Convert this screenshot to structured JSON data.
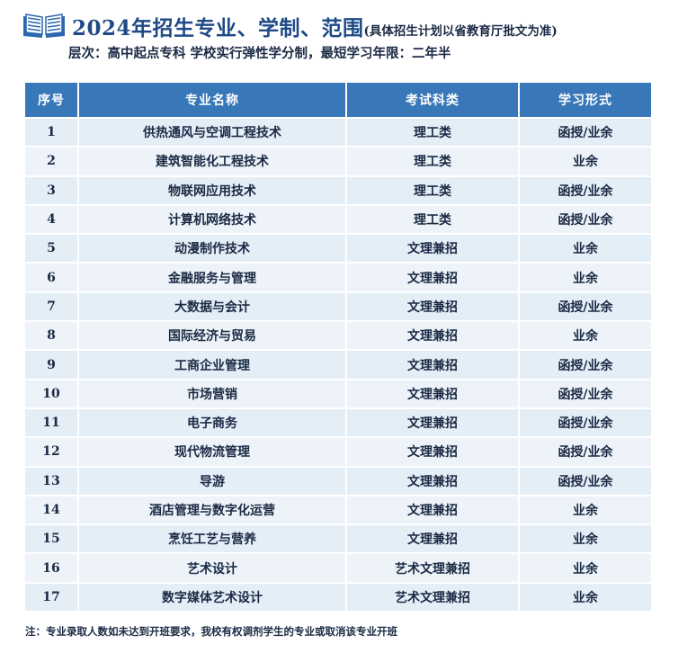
{
  "header": {
    "icon": "open-book-icon",
    "title": "2024年招生专业、学制、范围",
    "title_note": "(具体招生计划以省教育厅批文为准)",
    "subtitle": "层次：高中起点专科 学校实行弹性学分制，最短学习年限：二年半"
  },
  "table": {
    "columns": [
      "序号",
      "专业名称",
      "考试科类",
      "学习形式"
    ],
    "rows": [
      [
        "1",
        "供热通风与空调工程技术",
        "理工类",
        "函授/业余"
      ],
      [
        "2",
        "建筑智能化工程技术",
        "理工类",
        "业余"
      ],
      [
        "3",
        "物联网应用技术",
        "理工类",
        "函授/业余"
      ],
      [
        "4",
        "计算机网络技术",
        "理工类",
        "函授/业余"
      ],
      [
        "5",
        "动漫制作技术",
        "文理兼招",
        "业余"
      ],
      [
        "6",
        "金融服务与管理",
        "文理兼招",
        "业余"
      ],
      [
        "7",
        "大数据与会计",
        "文理兼招",
        "函授/业余"
      ],
      [
        "8",
        "国际经济与贸易",
        "文理兼招",
        "业余"
      ],
      [
        "9",
        "工商企业管理",
        "文理兼招",
        "函授/业余"
      ],
      [
        "10",
        "市场营销",
        "文理兼招",
        "函授/业余"
      ],
      [
        "11",
        "电子商务",
        "文理兼招",
        "函授/业余"
      ],
      [
        "12",
        "现代物流管理",
        "文理兼招",
        "函授/业余"
      ],
      [
        "13",
        "导游",
        "文理兼招",
        "函授/业余"
      ],
      [
        "14",
        "酒店管理与数字化运营",
        "文理兼招",
        "业余"
      ],
      [
        "15",
        "烹饪工艺与营养",
        "文理兼招",
        "业余"
      ],
      [
        "16",
        "艺术设计",
        "艺术文理兼招",
        "业余"
      ],
      [
        "17",
        "数字媒体艺术设计",
        "艺术文理兼招",
        "业余"
      ]
    ]
  },
  "footnote": "注：专业录取人数如未达到开班要求，我校有权调剂学生的专业或取消该专业开班",
  "colors": {
    "header_bg": "#3877b8",
    "row_bg": "#e4eef7",
    "title": "#1f4a87"
  }
}
